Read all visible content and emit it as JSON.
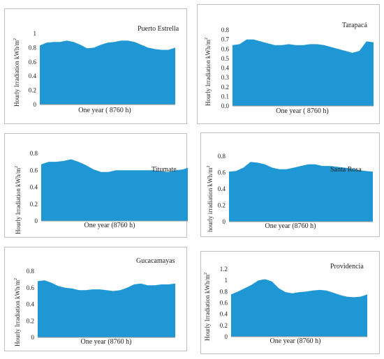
{
  "chart_data": [
    {
      "type": "area",
      "title": "Puerto Estrella",
      "xlabel": "One year ( 8760 h)",
      "ylabel": "Hourly Irradiation kWh/m",
      "ylabel_sup": "2",
      "ylim": [
        0,
        1
      ],
      "yticks": [
        "0",
        "0.2",
        "0.4",
        "0.6",
        "0.8",
        "1"
      ],
      "color": "#1f97d4",
      "x": [
        0,
        5,
        10,
        15,
        20,
        25,
        30,
        35,
        40,
        45,
        50,
        55,
        60,
        65,
        70,
        75,
        80,
        85,
        90,
        95,
        100
      ],
      "values": [
        0.83,
        0.87,
        0.88,
        0.88,
        0.9,
        0.88,
        0.84,
        0.79,
        0.8,
        0.84,
        0.87,
        0.88,
        0.9,
        0.9,
        0.88,
        0.84,
        0.8,
        0.78,
        0.77,
        0.77,
        0.8
      ]
    },
    {
      "type": "area",
      "title": "Tarapacá",
      "xlabel": "One year ( 8760 h)",
      "ylabel": "Hourly Irradiation kWh/m",
      "ylabel_sup": "2",
      "ylim": [
        0,
        0.8
      ],
      "yticks": [
        "0.0",
        "0.1",
        "0.2",
        "0.3",
        "0.4",
        "0.5",
        "0.6",
        "0.7",
        "0.8"
      ],
      "color": "#1f97d4",
      "x": [
        0,
        5,
        10,
        15,
        20,
        25,
        30,
        35,
        40,
        45,
        50,
        55,
        60,
        65,
        70,
        75,
        80,
        85,
        90,
        95,
        100
      ],
      "values": [
        0.64,
        0.65,
        0.7,
        0.7,
        0.68,
        0.66,
        0.64,
        0.64,
        0.65,
        0.64,
        0.64,
        0.65,
        0.65,
        0.64,
        0.62,
        0.6,
        0.58,
        0.56,
        0.58,
        0.68,
        0.67
      ]
    },
    {
      "type": "area",
      "title": "Titumate",
      "xlabel": "One year (8760 h)",
      "ylabel": "Hourly Irradiation kWh/m",
      "ylabel_sup": "2",
      "ylim": [
        0,
        0.8
      ],
      "yticks": [
        "0",
        "0.2",
        "0.4",
        "0.6",
        "0.8"
      ],
      "color": "#1f97d4",
      "x": [
        0,
        5,
        10,
        15,
        20,
        25,
        30,
        35,
        40,
        45,
        50,
        55,
        60,
        65,
        70,
        75,
        80,
        85,
        90,
        95,
        100
      ],
      "values": [
        0.67,
        0.7,
        0.7,
        0.71,
        0.73,
        0.7,
        0.66,
        0.61,
        0.58,
        0.58,
        0.6,
        0.6,
        0.6,
        0.6,
        0.6,
        0.6,
        0.59,
        0.58,
        0.6,
        0.61,
        0.64
      ]
    },
    {
      "type": "area",
      "title": "Santa Rosa",
      "xlabel": "One year (8760 h)",
      "ylabel": "hourly irradiation kWh/m",
      "ylabel_sup": "2",
      "ylim": [
        0,
        0.8
      ],
      "yticks": [
        "0",
        "0.2",
        "0.4",
        "0.6",
        "0.8"
      ],
      "color": "#1f97d4",
      "x": [
        0,
        5,
        10,
        15,
        20,
        25,
        30,
        35,
        40,
        45,
        50,
        55,
        60,
        65,
        70,
        75,
        80,
        85,
        90,
        95,
        100
      ],
      "values": [
        0.61,
        0.62,
        0.66,
        0.73,
        0.72,
        0.7,
        0.66,
        0.64,
        0.64,
        0.66,
        0.68,
        0.7,
        0.7,
        0.68,
        0.68,
        0.67,
        0.66,
        0.65,
        0.63,
        0.62,
        0.61
      ]
    },
    {
      "type": "area",
      "title": "Gucacamayas",
      "xlabel": "One year (8760 h)",
      "ylabel": "Hourly Irradiation kWh/m",
      "ylabel_sup": "2",
      "ylim": [
        0,
        0.8
      ],
      "yticks": [
        "0",
        "0.2",
        "0.4",
        "0.6",
        "0.8"
      ],
      "color": "#1f97d4",
      "x": [
        0,
        5,
        10,
        15,
        20,
        25,
        30,
        35,
        40,
        45,
        50,
        55,
        60,
        65,
        70,
        75,
        80,
        85,
        90,
        95,
        100
      ],
      "values": [
        0.68,
        0.69,
        0.66,
        0.62,
        0.6,
        0.59,
        0.57,
        0.57,
        0.58,
        0.58,
        0.57,
        0.56,
        0.57,
        0.6,
        0.64,
        0.65,
        0.63,
        0.63,
        0.64,
        0.64,
        0.65
      ]
    },
    {
      "type": "area",
      "title": "Providencia",
      "xlabel": "One year (8760 h)",
      "ylabel": "Hourly Irradiation kWh/m",
      "ylabel_sup": "2",
      "ylim": [
        0,
        1.2
      ],
      "yticks": [
        "0",
        "0.2",
        "0.4",
        "0.6",
        "0.8",
        "1",
        "1.2"
      ],
      "color": "#1f97d4",
      "x": [
        0,
        5,
        10,
        15,
        20,
        25,
        30,
        35,
        40,
        45,
        50,
        55,
        60,
        65,
        70,
        75,
        80,
        85,
        90,
        95,
        100
      ],
      "values": [
        0.75,
        0.8,
        0.86,
        0.92,
        1.0,
        1.02,
        0.98,
        0.86,
        0.79,
        0.77,
        0.79,
        0.8,
        0.82,
        0.83,
        0.82,
        0.78,
        0.74,
        0.71,
        0.7,
        0.71,
        0.75
      ]
    }
  ]
}
